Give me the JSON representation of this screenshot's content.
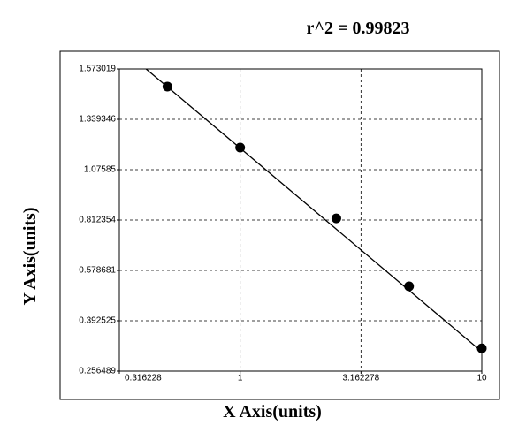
{
  "chart_data": {
    "type": "scatter",
    "title": "r^2 = 0.99823",
    "x_label": "X Axis(units)",
    "y_label": "Y Axis(units)",
    "x": [
      0.5,
      1,
      2.5,
      5,
      10
    ],
    "values": [
      1.491,
      1.1915,
      0.821,
      0.52,
      0.318
    ],
    "color": "#000000",
    "fit": {
      "x": [
        0.408,
        10
      ],
      "y": [
        1.573019,
        0.309
      ]
    },
    "xscale": "log",
    "yscale": "tick-interpolated",
    "xlim": [
      0.316228,
      10
    ],
    "xticks": [
      0.316228,
      1,
      3.162278,
      10
    ],
    "ylim": [
      0.256489,
      1.573019
    ],
    "yticks": [
      0.256489,
      0.392525,
      0.578681,
      0.812354,
      1.07585,
      1.339346,
      1.573019
    ],
    "grid": true
  }
}
